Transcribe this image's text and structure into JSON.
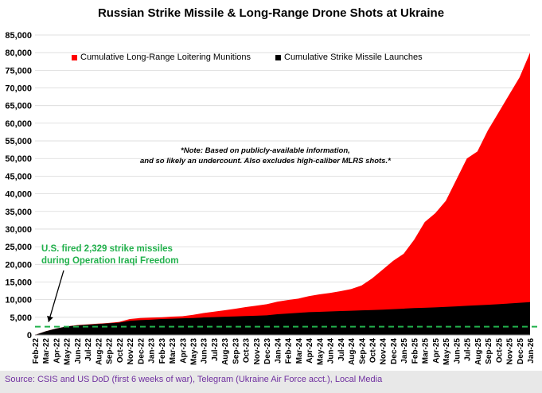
{
  "chart_data": {
    "type": "area",
    "title": "Russian Strike Missile & Long-Range Drone Shots at Ukraine",
    "xlabel": "",
    "ylabel": "",
    "ylim": [
      0,
      85000
    ],
    "yticks": [
      0,
      5000,
      10000,
      15000,
      20000,
      25000,
      30000,
      35000,
      40000,
      45000,
      50000,
      55000,
      60000,
      65000,
      70000,
      75000,
      80000,
      85000
    ],
    "ytick_labels": [
      "0",
      "5,000",
      "10,000",
      "15,000",
      "20,000",
      "25,000",
      "30,000",
      "35,000",
      "40,000",
      "45,000",
      "50,000",
      "55,000",
      "60,000",
      "65,000",
      "70,000",
      "75,000",
      "80,000",
      "85,000"
    ],
    "x_labels": [
      "Feb-22",
      "Mar-22",
      "Apr-22",
      "May-22",
      "Jun-22",
      "Jul-22",
      "Aug-22",
      "Sep-22",
      "Oct-22",
      "Nov-22",
      "Dec-22",
      "Jan-23",
      "Feb-23",
      "Mar-23",
      "Apr-23",
      "May-23",
      "Jun-23",
      "Jul-23",
      "Aug-23",
      "Sep-23",
      "Oct-23",
      "Nov-23",
      "Dec-23",
      "Jan-24",
      "Feb-24",
      "Mar-24",
      "Apr-24",
      "May-24",
      "Jun-24",
      "Jul-24",
      "Aug-24",
      "Sep-24",
      "Oct-24",
      "Nov-24",
      "Dec-24",
      "Jan-25",
      "Feb-25",
      "Mar-25",
      "Apr-25",
      "May-25",
      "Jun-25",
      "Jul-25",
      "Aug-25",
      "Sep-25",
      "Oct-25",
      "Nov-25",
      "Dec-25",
      "Jan-26"
    ],
    "series": [
      {
        "name": "Cumulative Long-Range Loitering Munitions",
        "color": "#ff0000",
        "stacked_total": [
          0,
          1000,
          1800,
          2400,
          2800,
          3000,
          3200,
          3400,
          3700,
          4500,
          4800,
          4900,
          5000,
          5200,
          5300,
          5700,
          6200,
          6600,
          7000,
          7400,
          7900,
          8300,
          8700,
          9400,
          9900,
          10300,
          11000,
          11500,
          11900,
          12400,
          13000,
          14000,
          16000,
          18500,
          21000,
          23000,
          27000,
          32000,
          34500,
          38000,
          44000,
          50000,
          52000,
          58000,
          63000,
          68000,
          73000,
          80000
        ]
      },
      {
        "name": "Cumulative Strike Missile Launches",
        "color": "#000000",
        "values": [
          0,
          1000,
          1800,
          2400,
          2700,
          2900,
          3100,
          3300,
          3500,
          4000,
          4200,
          4300,
          4500,
          4600,
          4700,
          4800,
          4950,
          5050,
          5150,
          5250,
          5350,
          5450,
          5550,
          5850,
          6050,
          6250,
          6450,
          6550,
          6650,
          6750,
          6850,
          6950,
          7050,
          7150,
          7300,
          7450,
          7600,
          7700,
          7800,
          7950,
          8100,
          8250,
          8400,
          8550,
          8700,
          8900,
          9100,
          9300
        ]
      }
    ],
    "reference_line": {
      "value": 2329,
      "color": "#22b14c",
      "style": "dashed"
    },
    "legend_position": "top"
  },
  "annotations": {
    "note_line1": "*Note: Based on publicly-available information,",
    "note_line2": "and so likely an undercount. Also excludes high-caliber MLRS shots.*",
    "reference_line1": "U.S. fired 2,329 strike missiles",
    "reference_line2": "during Operation Iraqi Freedom"
  },
  "source": {
    "text": "Source: CSIS and US DoD (first 6 weeks of war), Telegram (Ukraine Air Force acct.), Local Media",
    "color": "#7030a0",
    "background": "#e8e8e8"
  }
}
